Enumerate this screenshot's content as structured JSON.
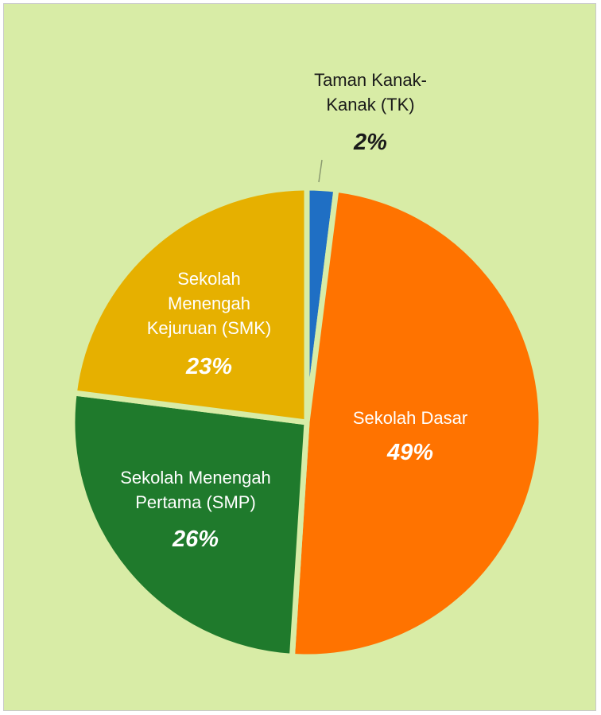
{
  "chart_data": {
    "type": "pie",
    "categories": [
      "Taman Kanak-\nKanak (TK)",
      "Sekolah Dasar",
      "Sekolah Menengah\nPertama (SMP)",
      "Sekolah\nMenengah\nKejuruan (SMK)"
    ],
    "values": [
      2,
      49,
      26,
      23
    ],
    "value_labels": [
      "2%",
      "49%",
      "26%",
      "23%"
    ],
    "colors": [
      "#1f6fc4",
      "#ff7300",
      "#1f7a2c",
      "#e6b000"
    ]
  }
}
